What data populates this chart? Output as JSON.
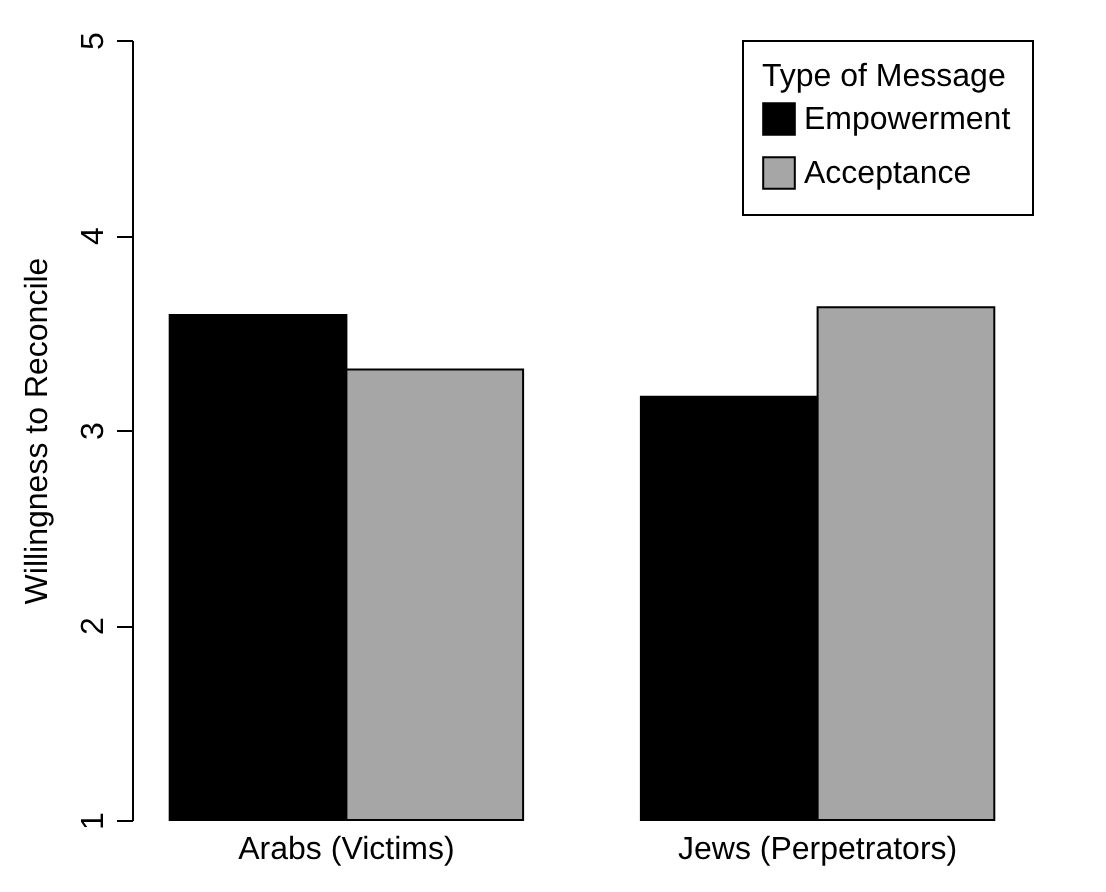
{
  "chart_data": {
    "type": "bar",
    "ylabel": "Willingness to Reconcile",
    "legend_title": "Type of Message",
    "categories": [
      "Arabs (Victims)",
      "Jews (Perpetrators)"
    ],
    "series": [
      {
        "name": "Empowerment",
        "color": "#000000",
        "values": [
          3.59,
          3.17
        ]
      },
      {
        "name": "Acceptance",
        "color": "#a6a6a6",
        "values": [
          3.31,
          3.63
        ]
      }
    ],
    "ylim": [
      1,
      5
    ],
    "yticks": [
      1,
      2,
      3,
      4,
      5
    ],
    "legend": "top right",
    "grid": false
  }
}
